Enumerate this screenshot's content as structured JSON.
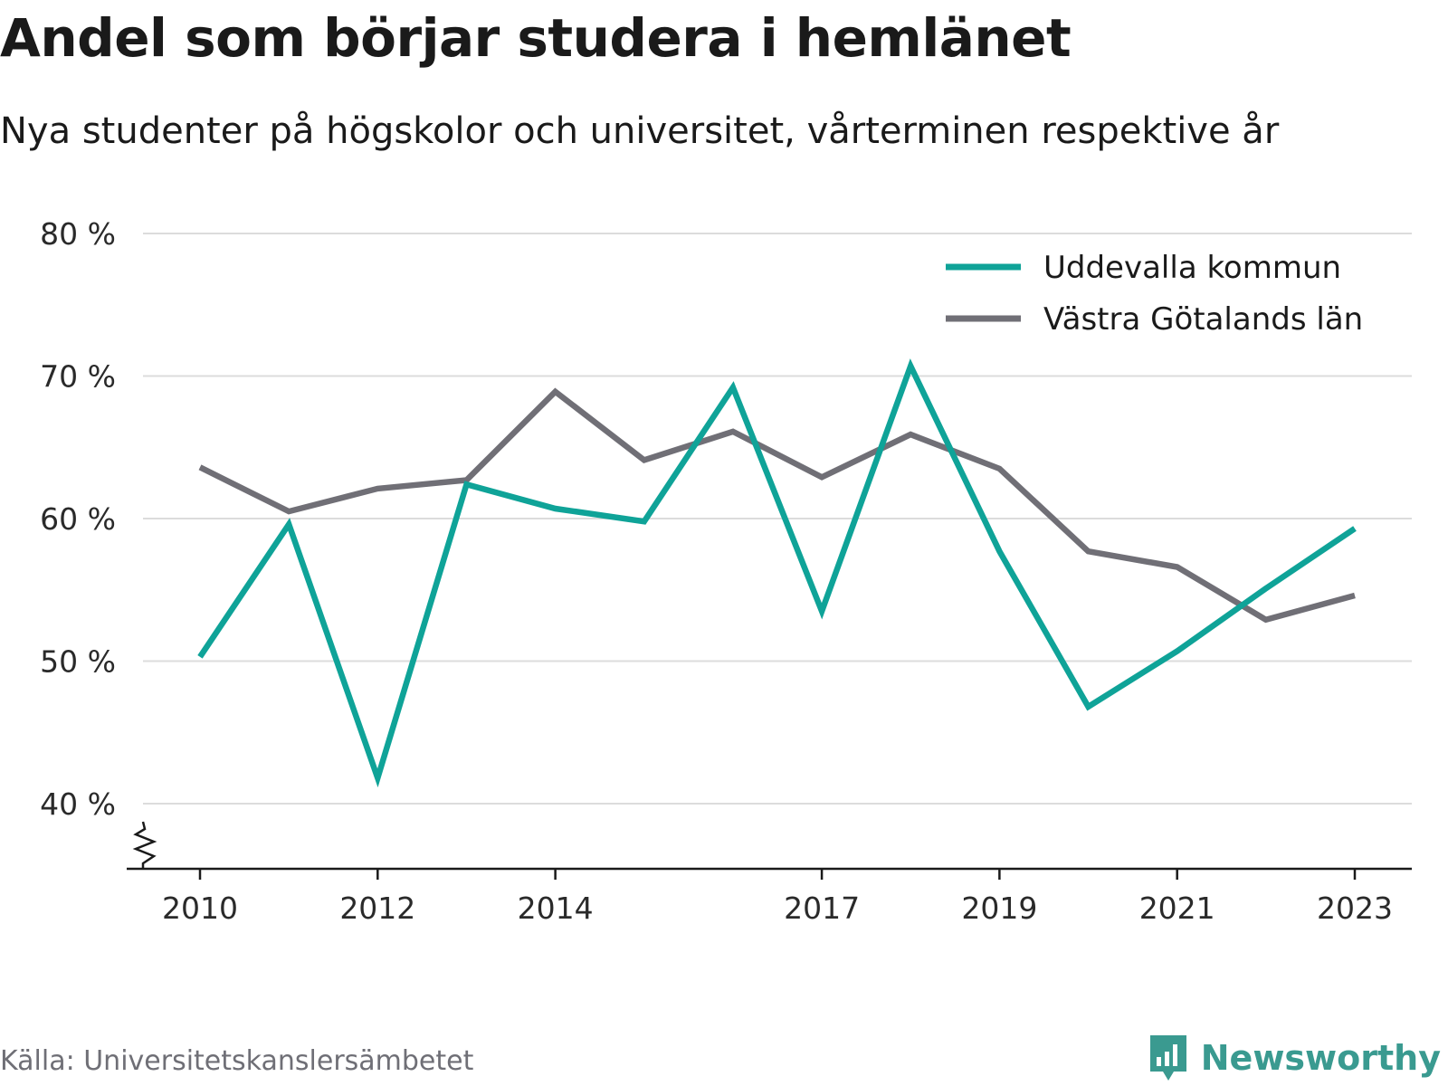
{
  "title": "Andel som börjar studera i hemlänet",
  "subtitle": "Nya studenter på högskolor och universitet, vårterminen respektive år",
  "source": "Källa: Universitetskanslersämbetet",
  "brand": {
    "name": "Newsworthy",
    "logo_icon": "newsworthy-chart-bubble-icon",
    "color": "#3a9a90"
  },
  "chart_data": {
    "type": "line",
    "x": [
      2010,
      2011,
      2012,
      2013,
      2014,
      2015,
      2016,
      2017,
      2018,
      2019,
      2020,
      2021,
      2022,
      2023
    ],
    "x_tick_labels": [
      "2010",
      "2012",
      "2014",
      "2017",
      "2019",
      "2021",
      "2023"
    ],
    "y_tick_labels": [
      "80 %",
      "70 %",
      "60 %",
      "50 %",
      "40 %"
    ],
    "ylim": [
      40,
      80
    ],
    "y_axis_break": true,
    "grid": true,
    "legend_position": "top-right",
    "series": [
      {
        "name": "Uddevalla kommun",
        "color": "#0fa398",
        "values": [
          50.3,
          59.6,
          41.8,
          62.4,
          60.7,
          59.8,
          69.2,
          53.5,
          70.7,
          57.7,
          46.8,
          50.7,
          55.1,
          59.3
        ]
      },
      {
        "name": "Västra Götalands län",
        "color": "#706f76",
        "values": [
          63.6,
          60.5,
          62.1,
          62.7,
          68.9,
          64.1,
          66.1,
          62.9,
          65.9,
          63.5,
          57.7,
          56.6,
          52.9,
          54.6
        ]
      }
    ]
  }
}
